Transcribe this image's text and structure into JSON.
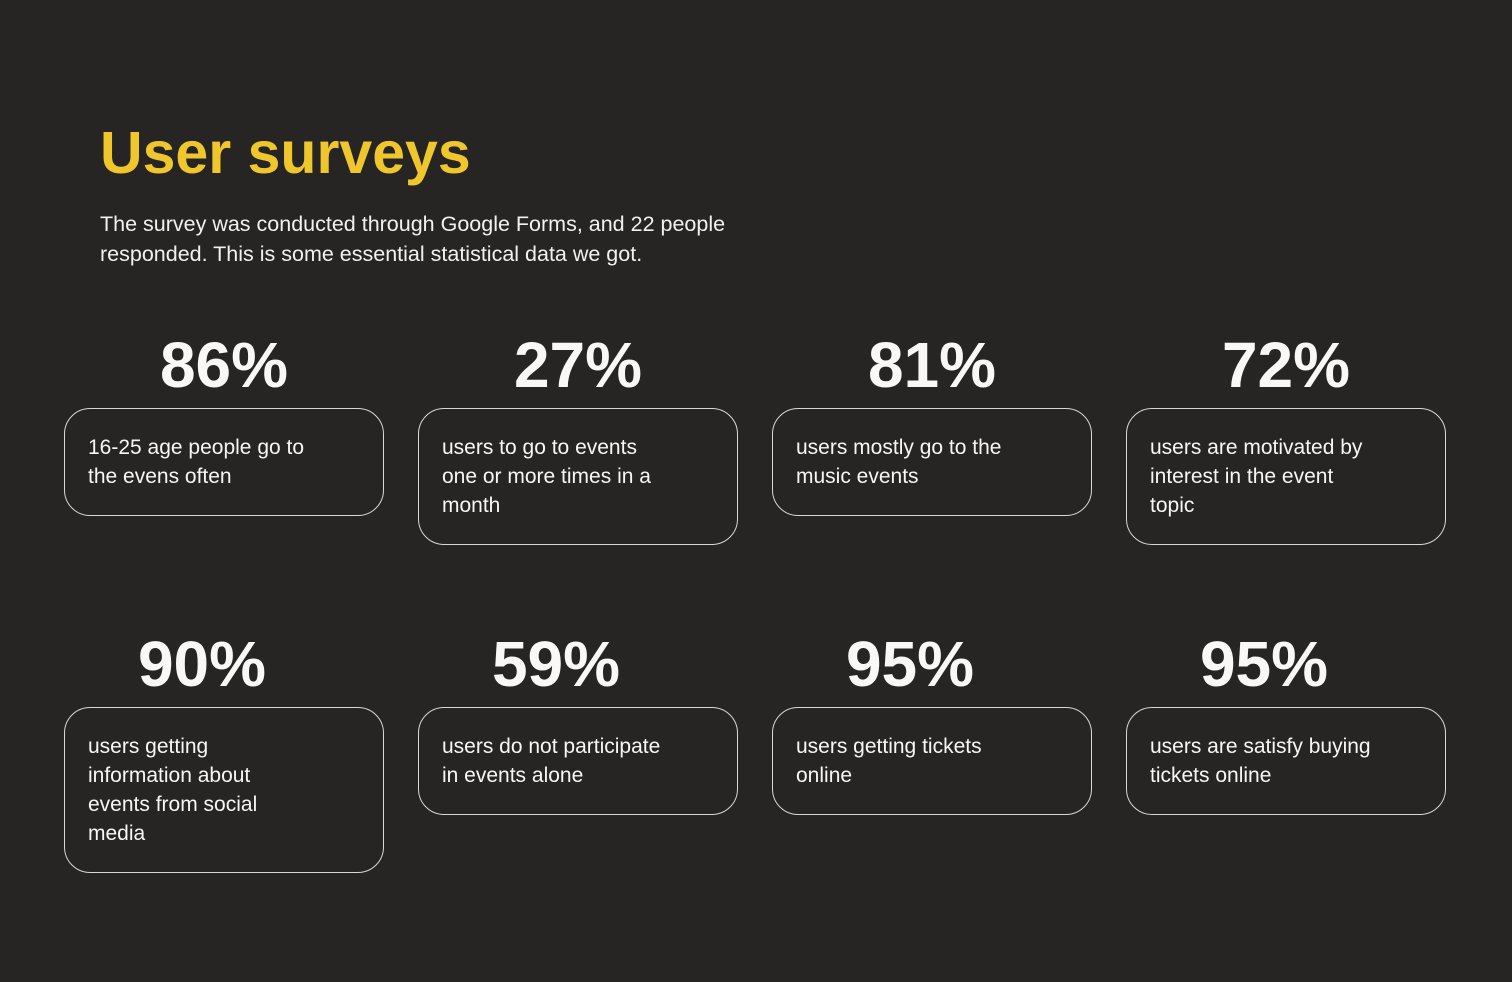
{
  "header": {
    "title": "User surveys",
    "subtitle": "The survey was conducted through Google Forms, and 22 people\nresponded. This is some essential statistical data we got."
  },
  "colors": {
    "background": "#272523",
    "accent_yellow": "#EFC62C",
    "card_border": "#D8D8D8",
    "text_primary": "#F7F6F3"
  },
  "stats": {
    "cards": [
      {
        "percent": "86%",
        "label": "16-25 age people go to\nthe evens often"
      },
      {
        "percent": "27%",
        "label": "users to go to events\none or more times in a\nmonth"
      },
      {
        "percent": "81%",
        "label": "users mostly go to the\nmusic events"
      },
      {
        "percent": "72%",
        "label": "users are motivated by\ninterest in the event\ntopic"
      },
      {
        "percent": "90%",
        "label": "users getting\ninformation about\nevents from social\nmedia"
      },
      {
        "percent": "59%",
        "label": "users do not participate\nin events alone"
      },
      {
        "percent": "95%",
        "label": "users getting tickets\nonline"
      },
      {
        "percent": "95%",
        "label": "users are satisfy buying\ntickets online"
      }
    ]
  }
}
